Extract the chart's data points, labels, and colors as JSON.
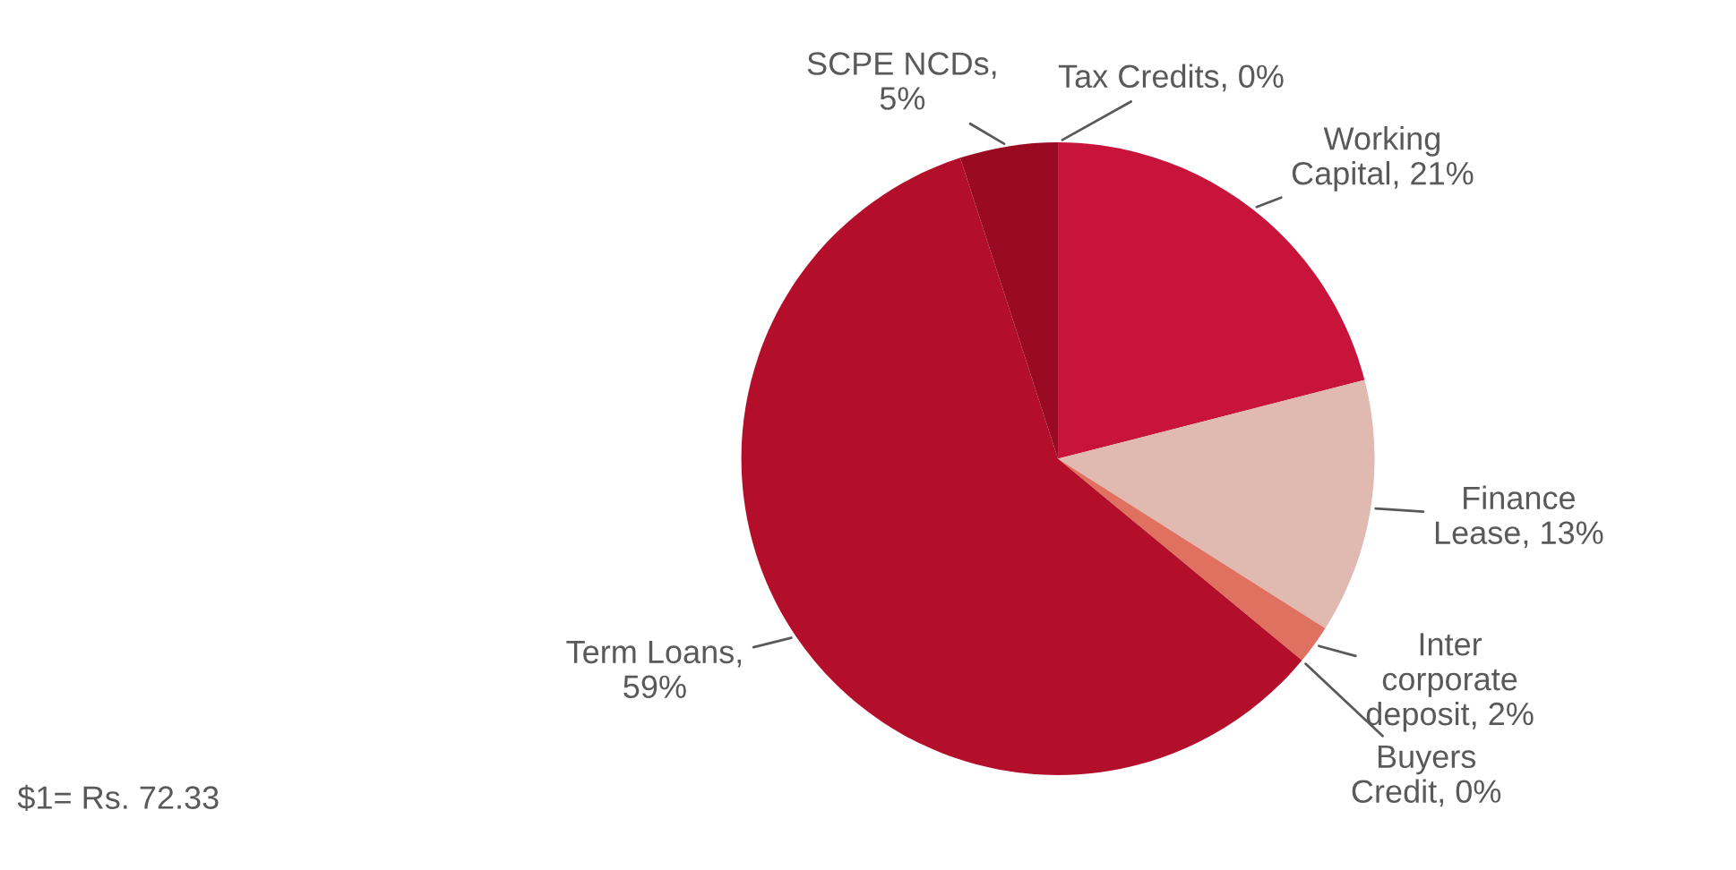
{
  "chart_data": {
    "type": "pie",
    "categories": [
      "Working\nCapital, 21%",
      "Finance\nLease, 13%",
      "Inter\ncorporate\ndeposit, 2%",
      "Buyers\nCredit, 0%",
      "Term Loans,\n59%",
      "SCPE NCDs,\n5%",
      "Tax Credits, 0%"
    ],
    "values": [
      21,
      13,
      2,
      0,
      59,
      5,
      0
    ],
    "colors": [
      "#c8143a",
      "#e0b9b0",
      "#e0705f",
      "#d04040",
      "#b30f2a",
      "#9a0a20",
      "#7a0818"
    ],
    "annotations": [
      "$1= Rs. 72.33"
    ]
  }
}
